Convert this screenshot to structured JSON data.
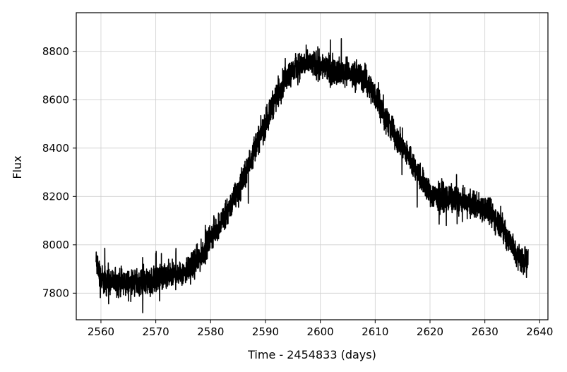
{
  "chart_data": {
    "type": "line",
    "title": "",
    "xlabel": "Time - 2454833 (days)",
    "ylabel": "Flux",
    "xlim": [
      2555.5,
      2641.5
    ],
    "ylim": [
      7690,
      8960
    ],
    "xticks": [
      2560,
      2570,
      2580,
      2590,
      2600,
      2610,
      2620,
      2630,
      2640
    ],
    "yticks": [
      7800,
      8000,
      8200,
      8400,
      8600,
      8800
    ],
    "grid": true,
    "legend": "none",
    "line_color": "#000000",
    "series": [
      {
        "x_start": 2559.1,
        "x_end": 2637.9,
        "noise_amplitude": 35,
        "trend": [
          {
            "x": 2559.1,
            "y": 7930
          },
          {
            "x": 2560,
            "y": 7860
          },
          {
            "x": 2562,
            "y": 7845
          },
          {
            "x": 2565,
            "y": 7840
          },
          {
            "x": 2568,
            "y": 7850
          },
          {
            "x": 2571,
            "y": 7860
          },
          {
            "x": 2574,
            "y": 7880
          },
          {
            "x": 2576,
            "y": 7900
          },
          {
            "x": 2578,
            "y": 7945
          },
          {
            "x": 2580,
            "y": 8030
          },
          {
            "x": 2582,
            "y": 8100
          },
          {
            "x": 2584,
            "y": 8180
          },
          {
            "x": 2586,
            "y": 8270
          },
          {
            "x": 2588,
            "y": 8400
          },
          {
            "x": 2590,
            "y": 8500
          },
          {
            "x": 2592,
            "y": 8620
          },
          {
            "x": 2594,
            "y": 8700
          },
          {
            "x": 2596,
            "y": 8740
          },
          {
            "x": 2598,
            "y": 8750
          },
          {
            "x": 2600,
            "y": 8740
          },
          {
            "x": 2602,
            "y": 8725
          },
          {
            "x": 2604,
            "y": 8715
          },
          {
            "x": 2606,
            "y": 8705
          },
          {
            "x": 2608,
            "y": 8690
          },
          {
            "x": 2610,
            "y": 8620
          },
          {
            "x": 2612,
            "y": 8520
          },
          {
            "x": 2614,
            "y": 8440
          },
          {
            "x": 2616,
            "y": 8370
          },
          {
            "x": 2618,
            "y": 8290
          },
          {
            "x": 2620,
            "y": 8210
          },
          {
            "x": 2622,
            "y": 8200
          },
          {
            "x": 2624,
            "y": 8190
          },
          {
            "x": 2626,
            "y": 8175
          },
          {
            "x": 2628,
            "y": 8165
          },
          {
            "x": 2630,
            "y": 8150
          },
          {
            "x": 2632,
            "y": 8110
          },
          {
            "x": 2634,
            "y": 8040
          },
          {
            "x": 2636,
            "y": 7950
          },
          {
            "x": 2637.9,
            "y": 7930
          }
        ]
      }
    ]
  }
}
